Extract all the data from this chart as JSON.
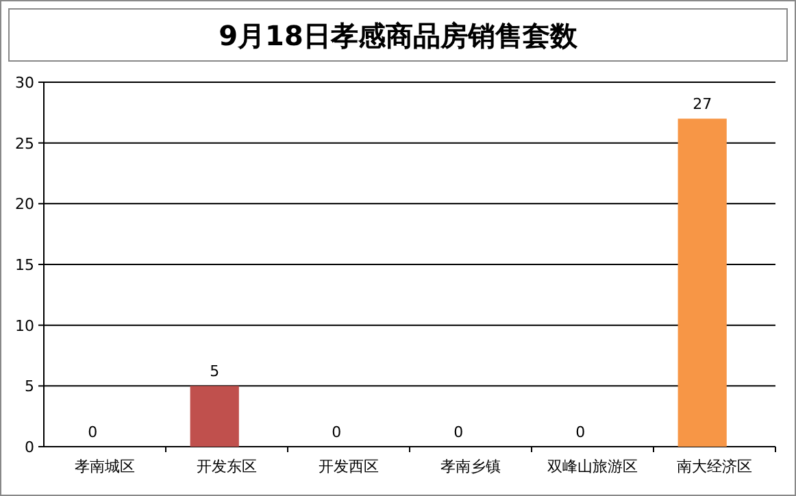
{
  "chart_data": {
    "type": "bar",
    "title": "9月18日孝感商品房销售套数",
    "categories": [
      "孝南城区",
      "开发东区",
      "开发西区",
      "孝南乡镇",
      "双峰山旅游区",
      "南大经济区"
    ],
    "values": [
      0,
      5,
      0,
      0,
      0,
      27
    ],
    "colors": [
      "#4f81bd",
      "#c0504d",
      "#9bbb59",
      "#8064a2",
      "#4bacc6",
      "#f79646"
    ],
    "ylim": [
      0,
      30
    ],
    "yticks": [
      0,
      5,
      10,
      15,
      20,
      25,
      30
    ],
    "grid": "y",
    "data_labels": true
  }
}
